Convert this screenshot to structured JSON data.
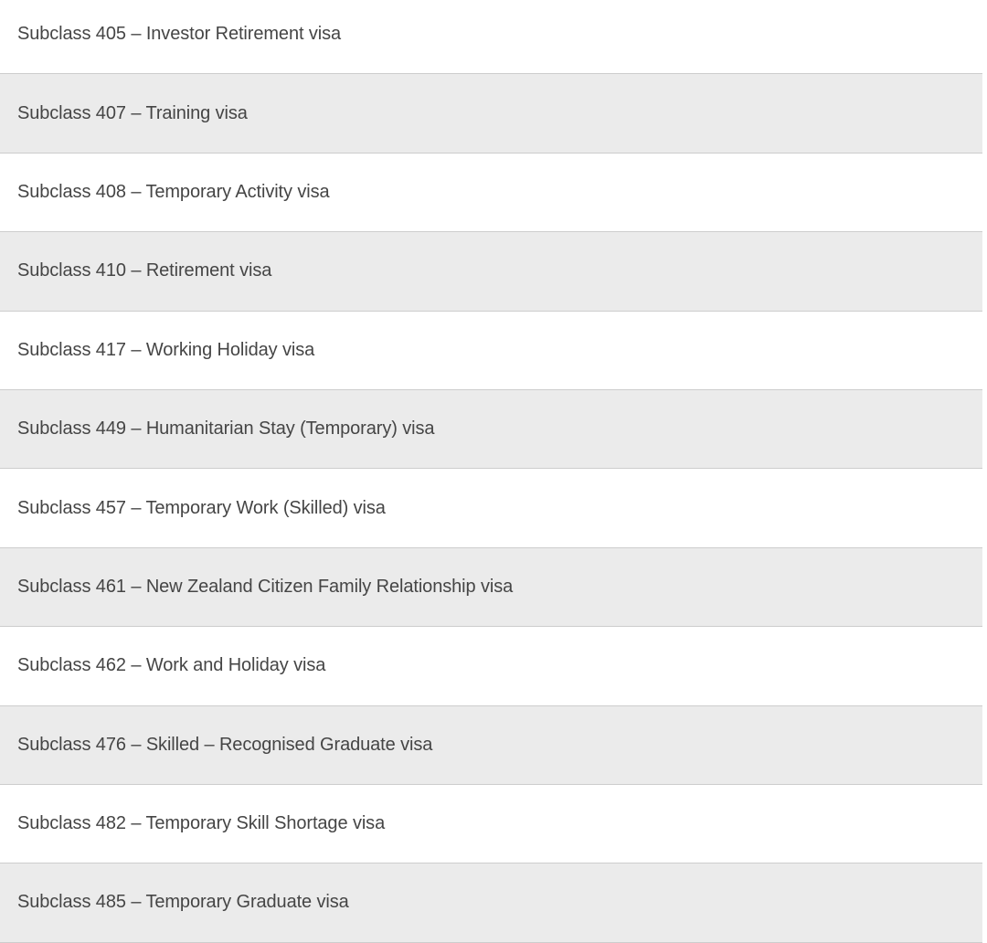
{
  "visa_list": {
    "items": [
      {
        "label": "Subclass 405 – Investor Retirement visa"
      },
      {
        "label": "Subclass 407 – Training visa"
      },
      {
        "label": "Subclass 408 – Temporary Activity visa"
      },
      {
        "label": "Subclass 410 – Retirement visa"
      },
      {
        "label": "Subclass 417 – Working Holiday visa"
      },
      {
        "label": "Subclass 449 – Humanitarian Stay (Temporary) visa"
      },
      {
        "label": "Subclass 457 – Temporary Work (Skilled) visa"
      },
      {
        "label": "Subclass 461 – New Zealand Citizen Family Relationship visa"
      },
      {
        "label": "Subclass 462 – Work and Holiday visa"
      },
      {
        "label": "Subclass 476 – Skilled – Recognised Graduate visa"
      },
      {
        "label": "Subclass 482 – Temporary Skill Shortage visa"
      },
      {
        "label": "Subclass 485 – Temporary Graduate visa"
      }
    ]
  },
  "colors": {
    "alt_row_bg": "#ebebeb",
    "border": "#cdcdcd",
    "text": "#454545"
  }
}
